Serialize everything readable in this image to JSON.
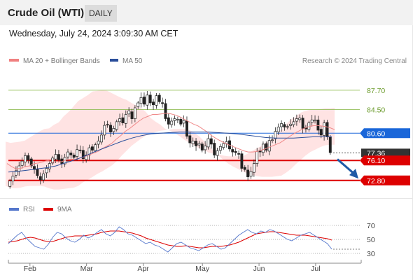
{
  "header": {
    "instrument": "Crude Oil (WTI)",
    "period": "DAILY"
  },
  "datetime": "Wednesday, July 24, 2024 3:09:30 AM CET",
  "legend": {
    "bollinger": "MA 20 + Bollinger Bands",
    "ma50": "MA 50"
  },
  "copyright": "Research © 2024 Trading Central",
  "colors": {
    "bollinger": "#f08080",
    "ma50": "#2a4e9a",
    "support": "#dd0000",
    "pivot": "#1a66d9",
    "resistance": "#8ab84a",
    "arrow": "#1f5aa6",
    "rsi": "#5577cc",
    "rsi_ma": "#dd0000"
  },
  "price_levels": [
    {
      "label": "87.70",
      "value": 87.7,
      "kind": "resistance"
    },
    {
      "label": "84.50",
      "value": 84.5,
      "kind": "resistance"
    },
    {
      "label": "80.60",
      "value": 80.6,
      "kind": "pivot"
    },
    {
      "label": "77.36",
      "value": 77.36,
      "kind": "last"
    },
    {
      "label": "76.10",
      "value": 76.1,
      "kind": "support"
    },
    {
      "label": "72.80",
      "value": 72.8,
      "kind": "support"
    }
  ],
  "rsi_panel": {
    "legend_rsi": "RSI",
    "legend_ma": "9MA",
    "ticks": [
      "70",
      "50",
      "30"
    ]
  },
  "x_axis": {
    "months": [
      "Feb",
      "Mar",
      "Apr",
      "May",
      "Jun",
      "Jul"
    ]
  },
  "chart_data": {
    "type": "candlestick",
    "title": "Crude Oil (WTI)",
    "price_range": [
      70,
      91.5
    ],
    "candles_close": [
      72.7,
      73.5,
      74.4,
      75.2,
      76.0,
      76.9,
      76.2,
      75.2,
      74.6,
      73.6,
      72.9,
      73.9,
      74.8,
      75.6,
      76.5,
      77.1,
      76.2,
      75.6,
      76.6,
      77.5,
      77.0,
      76.6,
      77.9,
      77.7,
      76.4,
      77.0,
      78.2,
      77.8,
      78.7,
      79.3,
      80.3,
      81.9,
      82.0,
      80.8,
      81.4,
      82.5,
      83.0,
      82.3,
      83.7,
      84.3,
      83.0,
      84.8,
      85.6,
      86.5,
      85.4,
      86.9,
      85.6,
      85.3,
      86.8,
      85.8,
      85.5,
      83.0,
      82.1,
      82.6,
      83.0,
      82.9,
      82.1,
      82.7,
      80.1,
      79.0,
      79.3,
      78.5,
      78.9,
      77.8,
      78.5,
      79.7,
      78.8,
      77.0,
      77.7,
      78.4,
      78.9,
      79.2,
      78.0,
      77.5,
      77.4,
      77.2,
      74.8,
      74.6,
      73.4,
      74.3,
      75.6,
      77.6,
      77.5,
      78.8,
      77.8,
      79.4,
      79.5,
      80.9,
      81.6,
      82.2,
      81.6,
      81.7,
      82.1,
      82.5,
      83.0,
      83.1,
      81.4,
      81.3,
      82.3,
      82.8,
      82.8,
      81.1,
      80.3,
      82.3,
      80.1,
      77.4
    ],
    "ma20": [
      75.6,
      75.1,
      74.7,
      74.8,
      75.1,
      75.2,
      75.6,
      75.7,
      75.9,
      76.1,
      75.8,
      75.9,
      75.9,
      76.2,
      76.3,
      76.3,
      76.5,
      76.7,
      77.0,
      77.3,
      77.6,
      78.1,
      78.5,
      78.9,
      79.6,
      80.2,
      80.9,
      81.4,
      82.0,
      82.6,
      83.1,
      83.4,
      83.7,
      83.7,
      83.8,
      83.9,
      83.8,
      83.6,
      83.3,
      82.9,
      82.5,
      82.1,
      81.8,
      81.3,
      80.8,
      80.2,
      79.7,
      79.3,
      78.9,
      78.6,
      78.3,
      78.0,
      77.7,
      77.5,
      77.5,
      77.6,
      77.8,
      78.1,
      78.4,
      78.7,
      79.0,
      79.5,
      80.0,
      80.5,
      80.9,
      81.3,
      81.6,
      81.8,
      81.9,
      81.8,
      81.7,
      81.5,
      81.2
    ],
    "bb_upper": [
      79.2,
      79.0,
      79.1,
      79.2,
      79.4,
      79.9,
      80.4,
      80.9,
      81.3,
      81.4,
      82.0,
      82.4,
      83.4,
      84.1,
      85.0,
      85.9,
      86.4,
      86.9,
      87.5,
      87.6,
      87.7,
      87.6,
      87.2,
      86.8,
      86.4,
      86.1,
      85.6,
      85.2,
      84.8,
      84.1,
      83.1,
      82.5,
      82.0,
      81.3,
      81.0,
      80.6,
      80.1,
      79.5,
      79.0,
      78.6,
      78.1,
      77.8,
      77.4,
      77.2,
      77.1,
      76.9,
      76.8,
      76.8,
      76.8,
      76.8,
      77.2,
      77.7,
      78.1,
      78.6,
      79.1,
      79.7,
      80.4,
      81.2,
      82.1,
      82.9,
      83.4,
      84.0,
      84.3,
      84.5,
      84.5,
      84.6,
      84.7,
      84.7,
      84.8
    ],
    "bb_lower": [
      71.9,
      71.6,
      71.5,
      71.6,
      71.8,
      71.9,
      71.9,
      71.9,
      71.8,
      71.5,
      71.3,
      71.3,
      71.4,
      71.5,
      71.6,
      71.9,
      72.5,
      72.9,
      73.4,
      73.9,
      74.3,
      74.8,
      75.3,
      76.0,
      76.9,
      77.7,
      78.5,
      79.1,
      79.7,
      80.2,
      80.5,
      80.8,
      81.0,
      81.1,
      81.2,
      81.3,
      81.3,
      81.3,
      81.1,
      80.7,
      80.1,
      79.3,
      78.4,
      77.7,
      76.9,
      76.2,
      75.6,
      75.1,
      74.7,
      74.3,
      73.9,
      73.7,
      73.5,
      73.4,
      73.4,
      73.4,
      73.5,
      73.6,
      74.1,
      74.7,
      75.5,
      76.2,
      76.9,
      77.5,
      77.9,
      78.3,
      78.6,
      78.7,
      78.7
    ],
    "ma50": [
      74.2,
      74.3,
      74.5,
      74.7,
      74.9,
      75.2,
      75.7,
      76.2,
      76.8,
      77.5,
      78.1,
      78.7,
      79.3,
      79.8,
      80.2,
      80.5,
      80.6,
      80.7,
      80.8,
      80.8,
      80.8,
      80.8,
      80.7,
      80.6,
      80.5,
      80.3,
      80.1,
      79.9,
      79.8,
      79.8,
      79.8,
      79.9,
      80.0,
      80.0,
      80.0
    ],
    "rsi": [
      44,
      50,
      56,
      60,
      52,
      46,
      40,
      38,
      36,
      43,
      53,
      60,
      58,
      52,
      48,
      46,
      50,
      56,
      52,
      55,
      60,
      64,
      58,
      55,
      60,
      68,
      64,
      58,
      56,
      52,
      48,
      44,
      46,
      42,
      40,
      36,
      32,
      38,
      44,
      46,
      42,
      38,
      36,
      34,
      38,
      42,
      44,
      40,
      36,
      38,
      44,
      50,
      56,
      60,
      64,
      60,
      58,
      62,
      60,
      64,
      62,
      58,
      54,
      50,
      48,
      52,
      56,
      58,
      60,
      56,
      52,
      48,
      44,
      36
    ],
    "rsi_ma": [
      46,
      47,
      48,
      50,
      52,
      53,
      52,
      50,
      48,
      47,
      47,
      49,
      51,
      53,
      54,
      55,
      55,
      55,
      56,
      57,
      58,
      60,
      61,
      62,
      62,
      62,
      61,
      60,
      59,
      57,
      55,
      52,
      50,
      48,
      46,
      44,
      42,
      41,
      40,
      40,
      41,
      40,
      39,
      38,
      38,
      39,
      40,
      40,
      40,
      41,
      42,
      44,
      46,
      49,
      52,
      55,
      58,
      59,
      60,
      61,
      61,
      60,
      59,
      58,
      57,
      56,
      56,
      56,
      55,
      54,
      53,
      52,
      51,
      49
    ],
    "rsi_range": [
      20,
      80
    ],
    "forecast": "down"
  }
}
